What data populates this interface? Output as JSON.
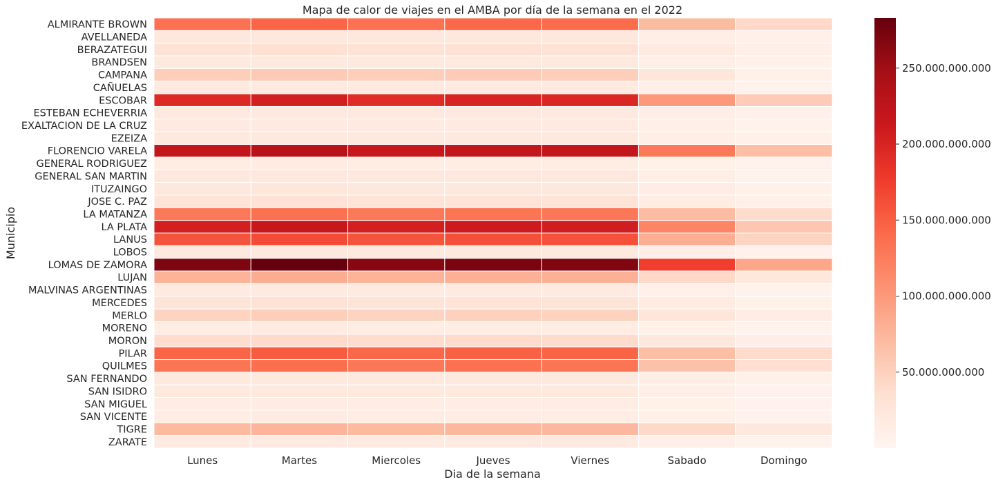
{
  "chart_data": {
    "type": "heatmap",
    "title": "Mapa de calor de viajes en el AMBA por día de la semana en el 2022",
    "xlabel": "Dia de la semana",
    "ylabel": "Municipio",
    "colormap": "Reds",
    "color_low": "#fff5f0",
    "color_high": "#67000d",
    "value_range": [
      0,
      283000000000
    ],
    "colorbar_ticks": [
      "50.000.000.000",
      "100.000.000.000",
      "150.000.000.000",
      "200.000.000.000",
      "250.000.000.000"
    ],
    "colorbar_tick_values": [
      50000000000,
      100000000000,
      150000000000,
      200000000000,
      250000000000
    ],
    "columns": [
      "Lunes",
      "Martes",
      "Miercoles",
      "Jueves",
      "Viernes",
      "Sabado",
      "Domingo"
    ],
    "rows": [
      {
        "name": "ALMIRANTE BROWN",
        "values": [
          135000000000,
          145000000000,
          135000000000,
          143000000000,
          140000000000,
          70000000000,
          42000000000
        ]
      },
      {
        "name": "AVELLANEDA",
        "values": [
          22000000000,
          23000000000,
          22000000000,
          23000000000,
          22000000000,
          12000000000,
          7000000000
        ]
      },
      {
        "name": "BERAZATEGUI",
        "values": [
          32000000000,
          34000000000,
          32000000000,
          33000000000,
          32000000000,
          18000000000,
          10000000000
        ]
      },
      {
        "name": "BRANDSEN",
        "values": [
          20000000000,
          21000000000,
          20000000000,
          20000000000,
          20000000000,
          12000000000,
          7000000000
        ]
      },
      {
        "name": "CAMPANA",
        "values": [
          52000000000,
          56000000000,
          52000000000,
          55000000000,
          53000000000,
          26000000000,
          9000000000
        ]
      },
      {
        "name": "CAÑUELAS",
        "values": [
          18000000000,
          19000000000,
          18000000000,
          18000000000,
          18000000000,
          10000000000,
          5000000000
        ]
      },
      {
        "name": "ESCOBAR",
        "values": [
          195000000000,
          205000000000,
          192000000000,
          200000000000,
          197000000000,
          100000000000,
          55000000000
        ]
      },
      {
        "name": "ESTEBAN ECHEVERRIA",
        "values": [
          20000000000,
          21000000000,
          20000000000,
          21000000000,
          20000000000,
          12000000000,
          7000000000
        ]
      },
      {
        "name": "EXALTACION DE LA CRUZ",
        "values": [
          18000000000,
          19000000000,
          18000000000,
          18000000000,
          18000000000,
          10000000000,
          6000000000
        ]
      },
      {
        "name": "EZEIZA",
        "values": [
          20000000000,
          21000000000,
          20000000000,
          20000000000,
          20000000000,
          12000000000,
          7000000000
        ]
      },
      {
        "name": "FLORENCIO VARELA",
        "values": [
          220000000000,
          230000000000,
          218000000000,
          222000000000,
          220000000000,
          128000000000,
          68000000000
        ]
      },
      {
        "name": "GENERAL RODRIGUEZ",
        "values": [
          16000000000,
          17000000000,
          16000000000,
          16000000000,
          16000000000,
          9000000000,
          5000000000
        ]
      },
      {
        "name": "GENERAL SAN MARTIN",
        "values": [
          22000000000,
          23000000000,
          22000000000,
          22000000000,
          22000000000,
          12000000000,
          6000000000
        ]
      },
      {
        "name": "ITUZAINGO",
        "values": [
          24000000000,
          25000000000,
          24000000000,
          24000000000,
          24000000000,
          13000000000,
          7000000000
        ]
      },
      {
        "name": "JOSE C. PAZ",
        "values": [
          30000000000,
          32000000000,
          30000000000,
          31000000000,
          30000000000,
          16000000000,
          8000000000
        ]
      },
      {
        "name": "LA MATANZA",
        "values": [
          128000000000,
          135000000000,
          128000000000,
          132000000000,
          130000000000,
          70000000000,
          38000000000
        ]
      },
      {
        "name": "LA PLATA",
        "values": [
          205000000000,
          215000000000,
          205000000000,
          210000000000,
          207000000000,
          118000000000,
          60000000000
        ]
      },
      {
        "name": "LANUS",
        "values": [
          158000000000,
          165000000000,
          158000000000,
          162000000000,
          160000000000,
          82000000000,
          48000000000
        ]
      },
      {
        "name": "LOBOS",
        "values": [
          20000000000,
          21000000000,
          20000000000,
          20000000000,
          20000000000,
          11000000000,
          6000000000
        ]
      },
      {
        "name": "LOMAS DE ZAMORA",
        "values": [
          270000000000,
          283000000000,
          265000000000,
          272000000000,
          268000000000,
          175000000000,
          88000000000
        ]
      },
      {
        "name": "LUJAN",
        "values": [
          78000000000,
          83000000000,
          78000000000,
          80000000000,
          79000000000,
          42000000000,
          24000000000
        ]
      },
      {
        "name": "MALVINAS ARGENTINAS",
        "values": [
          18000000000,
          19000000000,
          18000000000,
          18000000000,
          18000000000,
          10000000000,
          5000000000
        ]
      },
      {
        "name": "MERCEDES",
        "values": [
          30000000000,
          32000000000,
          30000000000,
          31000000000,
          30000000000,
          17000000000,
          9000000000
        ]
      },
      {
        "name": "MERLO",
        "values": [
          48000000000,
          52000000000,
          48000000000,
          50000000000,
          49000000000,
          26000000000,
          13000000000
        ]
      },
      {
        "name": "MORENO",
        "values": [
          16000000000,
          17000000000,
          16000000000,
          16000000000,
          16000000000,
          9000000000,
          5000000000
        ]
      },
      {
        "name": "MORON",
        "values": [
          38000000000,
          41000000000,
          38000000000,
          40000000000,
          39000000000,
          22000000000,
          11000000000
        ]
      },
      {
        "name": "PILAR",
        "values": [
          145000000000,
          152000000000,
          143000000000,
          148000000000,
          146000000000,
          68000000000,
          40000000000
        ]
      },
      {
        "name": "QUILMES",
        "values": [
          132000000000,
          138000000000,
          130000000000,
          135000000000,
          133000000000,
          65000000000,
          36000000000
        ]
      },
      {
        "name": "SAN FERNANDO",
        "values": [
          20000000000,
          21000000000,
          20000000000,
          21000000000,
          20000000000,
          12000000000,
          7000000000
        ]
      },
      {
        "name": "SAN ISIDRO",
        "values": [
          20000000000,
          21000000000,
          20000000000,
          20000000000,
          20000000000,
          11000000000,
          6000000000
        ]
      },
      {
        "name": "SAN MIGUEL",
        "values": [
          16000000000,
          17000000000,
          16000000000,
          16000000000,
          16000000000,
          9000000000,
          5000000000
        ]
      },
      {
        "name": "SAN VICENTE",
        "values": [
          16000000000,
          17000000000,
          16000000000,
          16000000000,
          16000000000,
          9000000000,
          5000000000
        ]
      },
      {
        "name": "TIGRE",
        "values": [
          72000000000,
          76000000000,
          72000000000,
          74000000000,
          73000000000,
          42000000000,
          22000000000
        ]
      },
      {
        "name": "ZARATE",
        "values": [
          18000000000,
          19000000000,
          18000000000,
          18000000000,
          18000000000,
          10000000000,
          5000000000
        ]
      }
    ]
  }
}
